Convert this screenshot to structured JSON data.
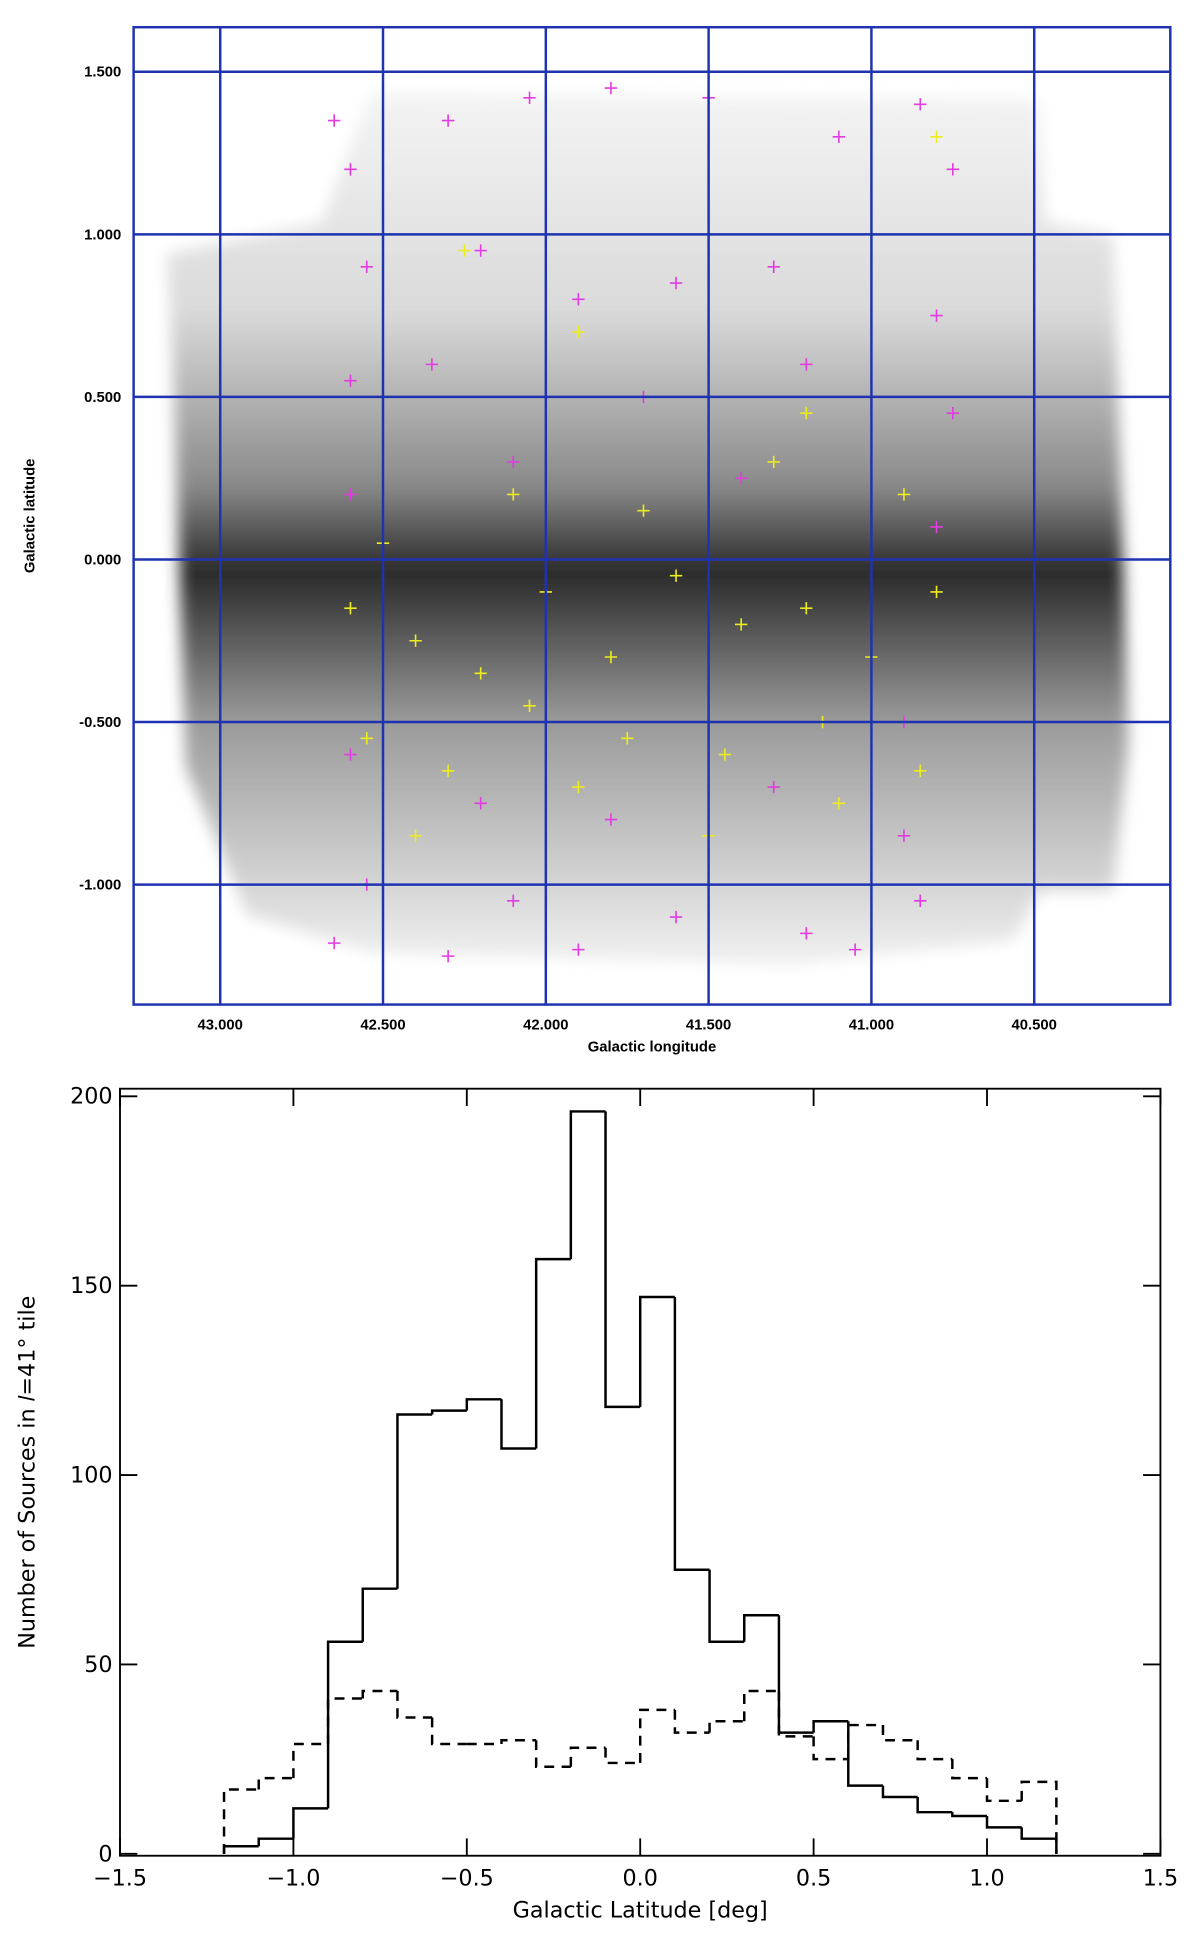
{
  "chart_data": [
    {
      "type": "scatter",
      "xlabel": "Galactic longitude",
      "ylabel": "Galactic latitude",
      "xlim": [
        43.266,
        40.082
      ],
      "ylim": [
        -1.369,
        1.637
      ],
      "xticks": [
        {
          "value": 43,
          "label": "43.000"
        },
        {
          "value": 42.5,
          "label": "42.500"
        },
        {
          "value": 42,
          "label": "42.000"
        },
        {
          "value": 41.5,
          "label": "41.500"
        },
        {
          "value": 41,
          "label": "41.000"
        },
        {
          "value": 40.5,
          "label": "40.500"
        }
      ],
      "yticks": [
        {
          "value": 1.5,
          "label": "1.500"
        },
        {
          "value": 1,
          "label": "1.000"
        },
        {
          "value": 0.5,
          "label": "0.500"
        },
        {
          "value": 0,
          "label": "0.000"
        },
        {
          "value": -0.5,
          "label": "-0.500"
        },
        {
          "value": -1,
          "label": "-1.000"
        }
      ],
      "grid": true,
      "grid_color": "#1f33b0",
      "series": [
        {
          "color": "#e23be2",
          "x": [
            42.65,
            42.6,
            42.3,
            42.05,
            41.8,
            41.5,
            41.1,
            40.85,
            40.75,
            42.55,
            42.2,
            41.9,
            41.6,
            41.3,
            41.0,
            40.8,
            42.6,
            42.35,
            41.7,
            41.2,
            40.75,
            42.6,
            42.1,
            41.4,
            40.8,
            42.6,
            42.2,
            41.8,
            41.3,
            40.9,
            42.55,
            42.1,
            41.6,
            41.2,
            40.85,
            42.65,
            42.3,
            41.9,
            41.05,
            40.9
          ],
          "y": [
            1.35,
            1.2,
            1.35,
            1.42,
            1.45,
            1.42,
            1.3,
            1.4,
            1.2,
            0.9,
            0.95,
            0.8,
            0.85,
            0.9,
            1.0,
            0.75,
            0.55,
            0.6,
            0.5,
            0.6,
            0.45,
            0.2,
            0.3,
            0.25,
            0.1,
            -0.6,
            -0.75,
            -0.8,
            -0.7,
            -0.85,
            -1.0,
            -1.05,
            -1.1,
            -1.15,
            -1.05,
            -1.18,
            -1.22,
            -1.2,
            -1.2,
            -0.5
          ]
        },
        {
          "color": "#ecec1e",
          "x": [
            42.6,
            42.4,
            42.2,
            42.0,
            41.8,
            41.6,
            41.4,
            41.2,
            41.0,
            40.8,
            42.5,
            42.1,
            41.7,
            41.3,
            40.9,
            42.55,
            42.3,
            42.05,
            41.75,
            41.45,
            41.15,
            40.85,
            42.4,
            41.9,
            41.5,
            41.1,
            42.25,
            41.9,
            41.2,
            40.8
          ],
          "y": [
            -0.15,
            -0.25,
            -0.35,
            -0.1,
            -0.3,
            -0.05,
            -0.2,
            -0.15,
            -0.3,
            -0.1,
            0.05,
            0.2,
            0.15,
            0.3,
            0.2,
            -0.55,
            -0.65,
            -0.45,
            -0.55,
            -0.6,
            -0.5,
            -0.65,
            -0.85,
            -0.7,
            -0.85,
            -0.75,
            0.95,
            0.7,
            0.45,
            1.3
          ]
        }
      ]
    },
    {
      "type": "histogram",
      "xlabel": "Galactic Latitude [deg]",
      "ylabel": "Number of Sources in 𝑙=41° tile",
      "xlim": [
        -1.5,
        1.5
      ],
      "ylim": [
        -0.5,
        202
      ],
      "xticks": [
        {
          "value": -1.5,
          "label": "−1.5"
        },
        {
          "value": -1,
          "label": "−1.0"
        },
        {
          "value": -0.5,
          "label": "−0.5"
        },
        {
          "value": 0,
          "label": "0.0"
        },
        0.5,
        {
          "value": 1,
          "label": "1.0"
        },
        1.5
      ],
      "yticks": [
        0,
        50,
        100,
        150,
        200
      ],
      "bins": [
        -1.2,
        -1.1,
        -1.0,
        -0.9,
        -0.8,
        -0.7,
        -0.6,
        -0.5,
        -0.4,
        -0.3,
        -0.2,
        -0.1,
        0.0,
        0.1,
        0.2,
        0.3,
        0.4,
        0.5,
        0.6,
        0.7,
        0.8,
        0.9,
        1.0,
        1.1,
        1.2
      ],
      "series": [
        {
          "color": "#000000",
          "dashed": false,
          "values": [
            2,
            4,
            12,
            56,
            70,
            116,
            117,
            120,
            107,
            157,
            196,
            118,
            147,
            75,
            56,
            63,
            32,
            35,
            18,
            15,
            11,
            10,
            7,
            4
          ]
        },
        {
          "color": "#000000",
          "dashed": true,
          "values": [
            17,
            20,
            29,
            41,
            43,
            36,
            29,
            29,
            30,
            23,
            28,
            24,
            38,
            32,
            35,
            43,
            31,
            25,
            34,
            30,
            25,
            20,
            14,
            19
          ]
        }
      ]
    }
  ]
}
